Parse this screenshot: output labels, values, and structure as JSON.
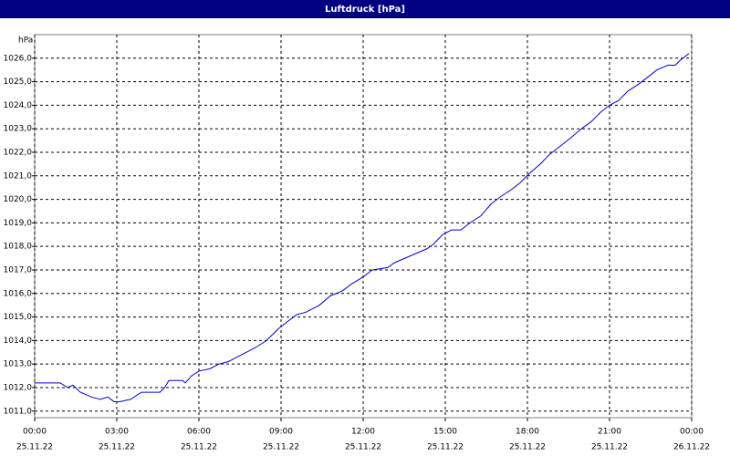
{
  "chart_data": {
    "type": "line",
    "title": "Luftdruck [hPa]",
    "y_unit": "hPa",
    "x": [
      0,
      0.93,
      1.2,
      1.4,
      1.67,
      2.07,
      2.4,
      2.67,
      2.9,
      3.1,
      3.5,
      3.9,
      4.57,
      4.75,
      4.9,
      5.4,
      5.5,
      5.73,
      6,
      6.4,
      6.73,
      7.07,
      7.57,
      8.07,
      8.47,
      8.9,
      9.23,
      9.57,
      9.9,
      10.4,
      10.8,
      11.23,
      11.57,
      12,
      12.33,
      12.9,
      13.13,
      13.73,
      14.33,
      14.57,
      14.9,
      15.23,
      15.57,
      15.9,
      16.3,
      16.67,
      17,
      17.4,
      17.73,
      18.07,
      18.47,
      18.8,
      19.13,
      19.57,
      19.97,
      20.33,
      20.67,
      21,
      21.33,
      21.67,
      22.07,
      22.4,
      22.73,
      23.13,
      23.4,
      23.57,
      23.9
    ],
    "series": [
      {
        "name": "Luftdruck",
        "color": "#0000cc",
        "values": [
          1012.2,
          1012.2,
          1012.0,
          1012.1,
          1011.8,
          1011.6,
          1011.5,
          1011.6,
          1011.4,
          1011.4,
          1011.5,
          1011.8,
          1011.8,
          1012.0,
          1012.3,
          1012.3,
          1012.2,
          1012.5,
          1012.7,
          1012.8,
          1013.0,
          1013.1,
          1013.4,
          1013.7,
          1014.0,
          1014.5,
          1014.8,
          1015.1,
          1015.2,
          1015.5,
          1015.9,
          1016.1,
          1016.4,
          1016.7,
          1017.0,
          1017.1,
          1017.3,
          1017.6,
          1017.9,
          1018.1,
          1018.5,
          1018.7,
          1018.7,
          1019.0,
          1019.3,
          1019.8,
          1020.1,
          1020.4,
          1020.7,
          1021.1,
          1021.5,
          1021.9,
          1022.2,
          1022.6,
          1023.0,
          1023.3,
          1023.7,
          1024.0,
          1024.2,
          1024.6,
          1024.9,
          1025.2,
          1025.5,
          1025.7,
          1025.7,
          1025.9,
          1026.2
        ]
      }
    ],
    "xlim": [
      0,
      24
    ],
    "xticks": [
      {
        "value": 0,
        "label": "00:00"
      },
      {
        "value": 3,
        "label": "03:00"
      },
      {
        "value": 6,
        "label": "06:00"
      },
      {
        "value": 9,
        "label": "09:00"
      },
      {
        "value": 12,
        "label": "12:00"
      },
      {
        "value": 15,
        "label": "15:00"
      },
      {
        "value": 18,
        "label": "18:00"
      },
      {
        "value": 21,
        "label": "21:00"
      },
      {
        "value": 24,
        "label": "00:00"
      }
    ],
    "xtick_dates": [
      "25.11.22",
      "25.11.22",
      "25.11.22",
      "25.11.22",
      "25.11.22",
      "25.11.22",
      "25.11.22",
      "25.11.22",
      "26.11.22"
    ],
    "ylim": [
      1010.72,
      1027.0
    ],
    "yticks": [
      {
        "value": 1011,
        "label": "1011,0"
      },
      {
        "value": 1012,
        "label": "1012,0"
      },
      {
        "value": 1013,
        "label": "1013,0"
      },
      {
        "value": 1014,
        "label": "1014,0"
      },
      {
        "value": 1015,
        "label": "1015,0"
      },
      {
        "value": 1016,
        "label": "1016,0"
      },
      {
        "value": 1017,
        "label": "1017,0"
      },
      {
        "value": 1018,
        "label": "1018,0"
      },
      {
        "value": 1019,
        "label": "1019,0"
      },
      {
        "value": 1020,
        "label": "1020,0"
      },
      {
        "value": 1021,
        "label": "1021,0"
      },
      {
        "value": 1022,
        "label": "1022,0"
      },
      {
        "value": 1023,
        "label": "1023,0"
      },
      {
        "value": 1024,
        "label": "1024,0"
      },
      {
        "value": 1025,
        "label": "1025,0"
      },
      {
        "value": 1026,
        "label": "1026,0"
      }
    ],
    "grid": true
  }
}
